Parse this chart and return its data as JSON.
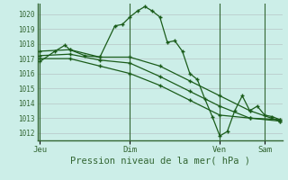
{
  "bg_color": "#cceee8",
  "grid_color": "#bbcccc",
  "line_color": "#1a5c1a",
  "marker_color": "#1a5c1a",
  "vline_color": "#336633",
  "spine_color": "#336633",
  "tick_color": "#336633",
  "xlabel": "Pression niveau de la mer( hPa )",
  "ylim": [
    1011.5,
    1020.7
  ],
  "yticks": [
    1012,
    1013,
    1014,
    1015,
    1016,
    1017,
    1018,
    1019,
    1020
  ],
  "xtick_labels": [
    "Jeu",
    "Dim",
    "Ven",
    "Sam"
  ],
  "xtick_positions": [
    0,
    36,
    72,
    90
  ],
  "vlines": [
    0,
    36,
    72,
    90
  ],
  "xlim": [
    -1,
    97
  ],
  "series1": [
    [
      0,
      1016.8
    ],
    [
      6,
      1017.5
    ],
    [
      10,
      1017.9
    ],
    [
      12,
      1017.6
    ],
    [
      18,
      1017.2
    ],
    [
      24,
      1017.1
    ],
    [
      30,
      1019.2
    ],
    [
      33,
      1019.3
    ],
    [
      36,
      1019.8
    ],
    [
      39,
      1020.2
    ],
    [
      42,
      1020.5
    ],
    [
      45,
      1020.2
    ],
    [
      48,
      1019.8
    ],
    [
      51,
      1018.1
    ],
    [
      54,
      1018.2
    ],
    [
      57,
      1017.5
    ],
    [
      60,
      1016.0
    ],
    [
      63,
      1015.6
    ],
    [
      66,
      1014.3
    ],
    [
      69,
      1013.1
    ],
    [
      72,
      1011.8
    ],
    [
      75,
      1012.1
    ],
    [
      78,
      1013.5
    ],
    [
      81,
      1014.5
    ],
    [
      84,
      1013.5
    ],
    [
      87,
      1013.8
    ],
    [
      90,
      1013.2
    ],
    [
      93,
      1013.1
    ],
    [
      96,
      1012.9
    ]
  ],
  "series2": [
    [
      0,
      1017.5
    ],
    [
      12,
      1017.6
    ],
    [
      24,
      1017.1
    ],
    [
      36,
      1017.1
    ],
    [
      48,
      1016.5
    ],
    [
      60,
      1015.5
    ],
    [
      72,
      1014.5
    ],
    [
      84,
      1013.5
    ],
    [
      96,
      1012.8
    ]
  ],
  "series3": [
    [
      0,
      1017.2
    ],
    [
      12,
      1017.3
    ],
    [
      24,
      1016.9
    ],
    [
      36,
      1016.7
    ],
    [
      48,
      1015.8
    ],
    [
      60,
      1014.8
    ],
    [
      72,
      1013.8
    ],
    [
      84,
      1013.0
    ],
    [
      96,
      1012.8
    ]
  ],
  "series4": [
    [
      0,
      1017.0
    ],
    [
      12,
      1017.0
    ],
    [
      24,
      1016.5
    ],
    [
      36,
      1016.0
    ],
    [
      48,
      1015.2
    ],
    [
      60,
      1014.2
    ],
    [
      72,
      1013.2
    ],
    [
      84,
      1013.0
    ],
    [
      96,
      1012.9
    ]
  ]
}
